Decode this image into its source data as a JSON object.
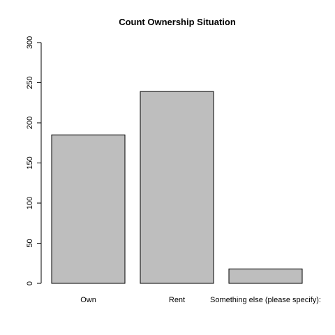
{
  "chart_data": {
    "type": "bar",
    "title": "Count Ownership Situation",
    "xlabel": "",
    "ylabel": "",
    "categories": [
      "Own",
      "Rent",
      "Something else (please specify):"
    ],
    "values": [
      185,
      239,
      18
    ],
    "ylim": [
      0,
      300
    ],
    "yticks": [
      0,
      50,
      100,
      150,
      200,
      250,
      300
    ],
    "ytick_labels": [
      "0",
      "50",
      "100",
      "150",
      "200",
      "250",
      "300"
    ],
    "grid": false,
    "legend": "none",
    "bar_fill": "#bebebe",
    "bar_stroke": "#000000"
  }
}
